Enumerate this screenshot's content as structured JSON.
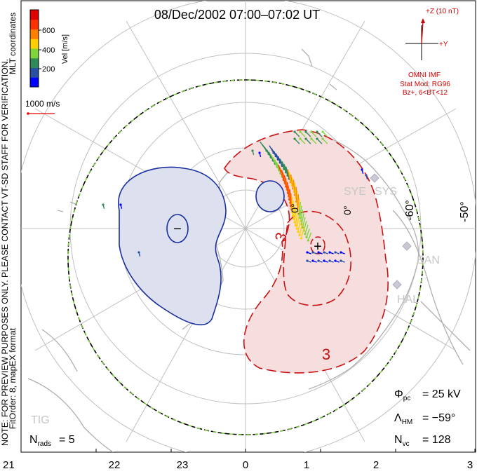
{
  "title": "08/Dec/2002 07:00–07:02 UT",
  "colorbar": {
    "label": "Vel [m/s]",
    "ticks": [
      "600",
      "400",
      "200"
    ],
    "colors": [
      "#0000ff",
      "#2850a0",
      "#2e8b57",
      "#7fd43a",
      "#ffd000",
      "#ff7f00",
      "#ff3000",
      "#e00000"
    ]
  },
  "vector_scale": {
    "label": "1000 m/s"
  },
  "imf": {
    "z_label": "+Z (10 nT)",
    "y_label": "+Y",
    "source": "OMNI IMF",
    "model_lines": [
      "Stat Mod: RG96",
      "Bz+, 6<BT<12"
    ]
  },
  "side_texts": {
    "mlt": "MLT coordinates",
    "preview": "NOTE: FOR PREVIEW PURPOSES ONLY. PLEASE CONTACT VT-SD STAFF FOR VERIFICATION.",
    "fitorder": "FitOrder: 8, mapEX format"
  },
  "latitude_labels": [
    "-60°",
    "-50°"
  ],
  "lat_tick_labels": [
    "0°",
    "0°"
  ],
  "stations": [
    "SYE",
    "SYS",
    "SAN",
    "HAL",
    "TIG"
  ],
  "contours": {
    "negative_label": "−",
    "positive_label": "+",
    "value_labels": [
      "3",
      "3"
    ]
  },
  "stats": {
    "phi_pc": "= 25 kV",
    "lambda_hm": "= −59°",
    "n_vc": "= 128",
    "n_rads": "= 5"
  },
  "mlt_axis": [
    "21",
    "22",
    "23",
    "0",
    "1",
    "2",
    "3"
  ],
  "colors": {
    "convection_boundary": "#77cc33",
    "negative_contour": "#1a2fa0",
    "positive_contour": "#cc1111",
    "imf": "#cc0000"
  }
}
